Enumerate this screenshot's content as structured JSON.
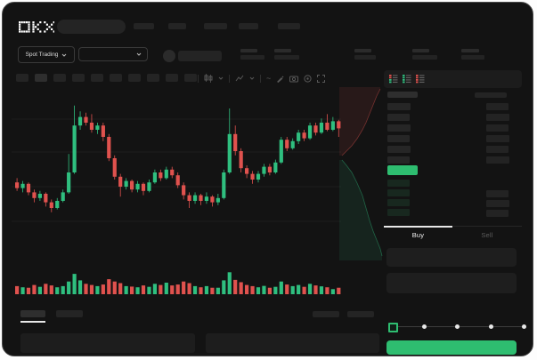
{
  "header": {
    "logo_text": "OKX",
    "nav_item_count": 5
  },
  "subheader": {
    "market_selector_label": "Spot Trading",
    "stat_count": 5
  },
  "chart_toolbar": {
    "timeframe_count": 10,
    "icons": [
      "candle-type-icon",
      "indicators-icon",
      "line-tool-icon",
      "draw-icon",
      "camera-icon",
      "settings-icon",
      "fullscreen-icon"
    ]
  },
  "colors": {
    "green": "#2EBD70",
    "candle_green": "#2FBF7F",
    "candle_red": "#E0524E",
    "bid_row_tint": "#18281f",
    "window_bg": "#131313"
  },
  "chart_data": {
    "type": "candlestick+volume",
    "title": "",
    "xlabel": "",
    "ylabel": "",
    "price_scale": [
      0,
      100
    ],
    "grid": true,
    "grid_y_local": [
      36,
      73,
      112,
      151
    ],
    "candles": [
      [
        38,
        34,
        41,
        32
      ],
      [
        34,
        37,
        39,
        31
      ],
      [
        37,
        31,
        38,
        29
      ],
      [
        31,
        27,
        33,
        24
      ],
      [
        27,
        30,
        32,
        25
      ],
      [
        30,
        24,
        31,
        21
      ],
      [
        24,
        20,
        26,
        17
      ],
      [
        20,
        25,
        27,
        19
      ],
      [
        25,
        31,
        33,
        24
      ],
      [
        31,
        45,
        58,
        30
      ],
      [
        45,
        78,
        92,
        44
      ],
      [
        78,
        84,
        88,
        75
      ],
      [
        84,
        80,
        87,
        78
      ],
      [
        80,
        75,
        86,
        73
      ],
      [
        75,
        78,
        80,
        72
      ],
      [
        78,
        70,
        80,
        67
      ],
      [
        70,
        55,
        72,
        53
      ],
      [
        55,
        42,
        57,
        40
      ],
      [
        42,
        35,
        44,
        28
      ],
      [
        35,
        39,
        41,
        33
      ],
      [
        39,
        33,
        40,
        31
      ],
      [
        33,
        37,
        39,
        31
      ],
      [
        37,
        32,
        38,
        29
      ],
      [
        32,
        38,
        40,
        31
      ],
      [
        38,
        45,
        47,
        37
      ],
      [
        45,
        41,
        47,
        39
      ],
      [
        41,
        47,
        49,
        40
      ],
      [
        47,
        43,
        49,
        41
      ],
      [
        43,
        36,
        45,
        34
      ],
      [
        36,
        29,
        38,
        26
      ],
      [
        29,
        25,
        31,
        20
      ],
      [
        25,
        29,
        31,
        23
      ],
      [
        29,
        25,
        30,
        22
      ],
      [
        25,
        28,
        31,
        23
      ],
      [
        28,
        24,
        29,
        21
      ],
      [
        24,
        27,
        30,
        22
      ],
      [
        27,
        45,
        47,
        26
      ],
      [
        45,
        72,
        90,
        44
      ],
      [
        72,
        60,
        78,
        57
      ],
      [
        60,
        48,
        62,
        45
      ],
      [
        48,
        44,
        50,
        41
      ],
      [
        44,
        40,
        46,
        37
      ],
      [
        40,
        44,
        46,
        38
      ],
      [
        44,
        49,
        51,
        42
      ],
      [
        49,
        45,
        51,
        43
      ],
      [
        45,
        52,
        54,
        44
      ],
      [
        52,
        68,
        70,
        51
      ],
      [
        68,
        62,
        70,
        60
      ],
      [
        62,
        67,
        69,
        61
      ],
      [
        67,
        73,
        75,
        65
      ],
      [
        73,
        69,
        75,
        67
      ],
      [
        69,
        78,
        80,
        68
      ],
      [
        78,
        73,
        80,
        71
      ],
      [
        73,
        80,
        83,
        72
      ],
      [
        80,
        75,
        86,
        74
      ],
      [
        75,
        81,
        84,
        74
      ],
      [
        81,
        76,
        82,
        70
      ]
    ],
    "volume": [
      35,
      30,
      28,
      40,
      32,
      45,
      38,
      30,
      35,
      55,
      88,
      60,
      45,
      40,
      35,
      42,
      65,
      55,
      48,
      35,
      33,
      30,
      38,
      32,
      45,
      40,
      50,
      38,
      42,
      55,
      48,
      35,
      30,
      35,
      28,
      28,
      60,
      95,
      62,
      52,
      40,
      35,
      30,
      36,
      28,
      32,
      55,
      42,
      35,
      40,
      32,
      45,
      38,
      34,
      30,
      22,
      28
    ]
  },
  "depth": {
    "ask_curve": [
      [
        46,
        2
      ],
      [
        42,
        10
      ],
      [
        38,
        20
      ],
      [
        34,
        30
      ],
      [
        30,
        40
      ],
      [
        26,
        48
      ],
      [
        20,
        58
      ],
      [
        14,
        66
      ],
      [
        8,
        72
      ],
      [
        3,
        77
      ]
    ],
    "bid_curve": [
      [
        3,
        82
      ],
      [
        8,
        88
      ],
      [
        14,
        96
      ],
      [
        20,
        108
      ],
      [
        26,
        122
      ],
      [
        30,
        136
      ],
      [
        34,
        150
      ],
      [
        38,
        162
      ],
      [
        42,
        172
      ],
      [
        46,
        182
      ],
      [
        48,
        190
      ]
    ]
  },
  "order_book": {
    "mode_icons": [
      "orderbook-both-icon",
      "orderbook-bids-icon",
      "orderbook-asks-icon"
    ],
    "asks": [
      {
        "l": 26,
        "r": 25
      },
      {
        "l": 25,
        "r": 26
      },
      {
        "l": 26,
        "r": 25
      },
      {
        "l": 25,
        "r": 26
      },
      {
        "l": 26,
        "r": 25
      },
      {
        "l": 25,
        "r": 26
      }
    ],
    "price_bar": {
      "color": "#2EBD70",
      "width": 34
    },
    "bids": [
      {
        "l": 25,
        "r": 0
      },
      {
        "l": 25,
        "r": 25
      },
      {
        "l": 25,
        "r": 26
      },
      {
        "l": 25,
        "r": 25
      }
    ]
  },
  "trade_panel": {
    "buy_label": "Buy",
    "sell_label": "Sell",
    "slider_stops": 5
  }
}
